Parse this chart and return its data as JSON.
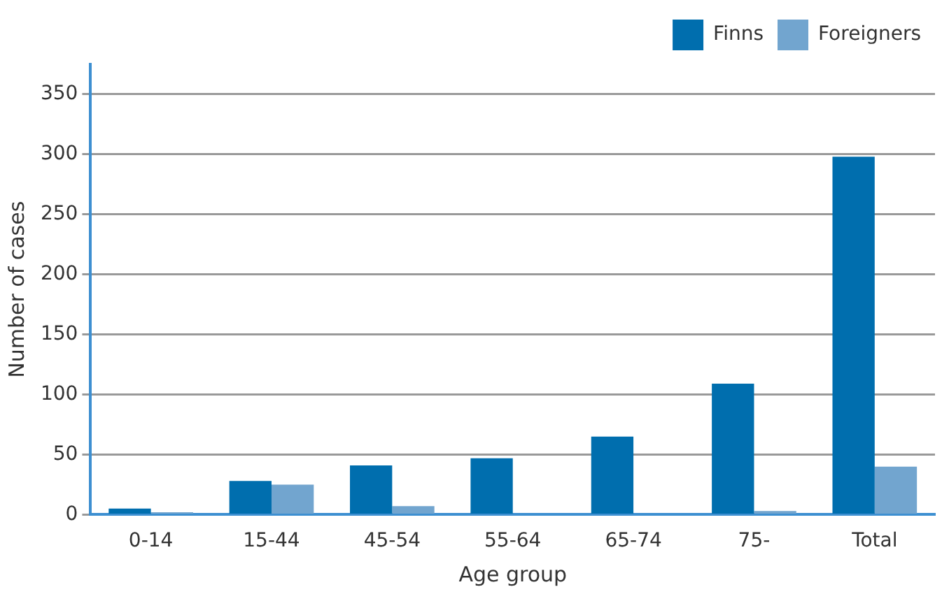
{
  "chart_data": {
    "type": "bar",
    "xlabel": "Age group",
    "ylabel": "Number of cases",
    "categories": [
      "0-14",
      "15-44",
      "45-54",
      "55-64",
      "65-74",
      "75-",
      "Total"
    ],
    "series": [
      {
        "name": "Finns",
        "color": "#006eae",
        "values": [
          5,
          28,
          41,
          47,
          65,
          109,
          298
        ]
      },
      {
        "name": "Foreigners",
        "color": "#72a5cf",
        "values": [
          2,
          25,
          7,
          0,
          0,
          3,
          40
        ]
      }
    ],
    "ylim": [
      0,
      375
    ],
    "yticks": [
      0,
      50,
      100,
      150,
      200,
      250,
      300,
      350
    ],
    "grid": "y",
    "legend": "top right"
  }
}
